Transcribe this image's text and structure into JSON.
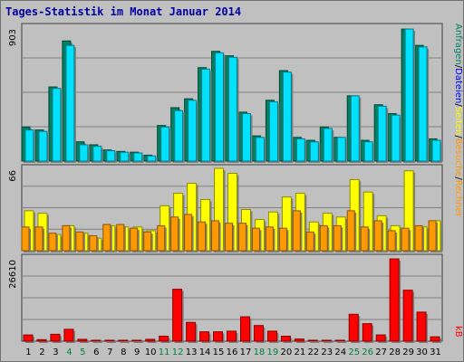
{
  "title": "Tages-Statistik im Monat Januar 2014",
  "colors": {
    "background": "#c0c0c0",
    "anfragen": "#008060",
    "dateien": "#00e0ff",
    "seiten": "#ffff00",
    "besuche": "#ff9900",
    "rechner": "#ff9900",
    "kb": "#ff0000",
    "title": "#0000a0",
    "weekend": "#008040"
  },
  "chart_data": [
    {
      "type": "bar",
      "panel": "top",
      "ymax_label": "903",
      "ylim": [
        0,
        903
      ],
      "right_labels": [
        "Anfragen",
        "/",
        "Dateien",
        "/",
        "Seiten",
        "/",
        "Besuche",
        "/",
        "Rechner"
      ],
      "series": [
        {
          "name": "Anfragen",
          "values": [
            230,
            210,
            500,
            810,
            130,
            110,
            75,
            65,
            60,
            40,
            240,
            360,
            420,
            630,
            740,
            710,
            330,
            170,
            410,
            610,
            160,
            140,
            230,
            160,
            440,
            140,
            380,
            320,
            890,
            780,
            150
          ]
        },
        {
          "name": "Dateien",
          "values": [
            210,
            200,
            490,
            780,
            110,
            100,
            70,
            60,
            55,
            35,
            230,
            340,
            410,
            620,
            730,
            700,
            320,
            160,
            400,
            600,
            150,
            130,
            220,
            160,
            440,
            130,
            370,
            310,
            890,
            770,
            140
          ]
        }
      ]
    },
    {
      "type": "bar",
      "panel": "middle",
      "ymax_label": "66",
      "ylim": [
        0,
        66
      ],
      "series": [
        {
          "name": "Seiten",
          "values": [
            32,
            30,
            13,
            20,
            14,
            10,
            20,
            19,
            19,
            16,
            36,
            46,
            54,
            41,
            66,
            62,
            33,
            25,
            31,
            43,
            46,
            23,
            30,
            27,
            57,
            47,
            28,
            20,
            64,
            19,
            24
          ]
        },
        {
          "name": "Besuche",
          "values": [
            19,
            19,
            14,
            20,
            15,
            12,
            21,
            21,
            18,
            15,
            20,
            27,
            29,
            23,
            24,
            22,
            22,
            18,
            19,
            18,
            32,
            15,
            20,
            20,
            32,
            19,
            24,
            16,
            18,
            20,
            24
          ]
        }
      ]
    },
    {
      "type": "bar",
      "panel": "bottom",
      "ymax_label": "26610",
      "ylim": [
        0,
        26610
      ],
      "right_labels": [
        "kB"
      ],
      "series": [
        {
          "name": "kB",
          "values": [
            2000,
            500,
            2200,
            3800,
            600,
            300,
            300,
            300,
            300,
            600,
            1600,
            16600,
            6000,
            3000,
            3000,
            3200,
            7800,
            5000,
            3200,
            1600,
            700,
            300,
            300,
            300,
            8600,
            5600,
            2000,
            26300,
            16300,
            9300,
            1400
          ]
        }
      ],
      "categories": [
        "1",
        "2",
        "3",
        "4",
        "5",
        "6",
        "7",
        "8",
        "9",
        "10",
        "11",
        "12",
        "13",
        "14",
        "15",
        "16",
        "17",
        "18",
        "19",
        "20",
        "21",
        "22",
        "23",
        "24",
        "25",
        "26",
        "27",
        "28",
        "29",
        "30",
        "31"
      ],
      "weekend_days": [
        "4",
        "5",
        "11",
        "12",
        "18",
        "19",
        "25",
        "26"
      ]
    }
  ]
}
